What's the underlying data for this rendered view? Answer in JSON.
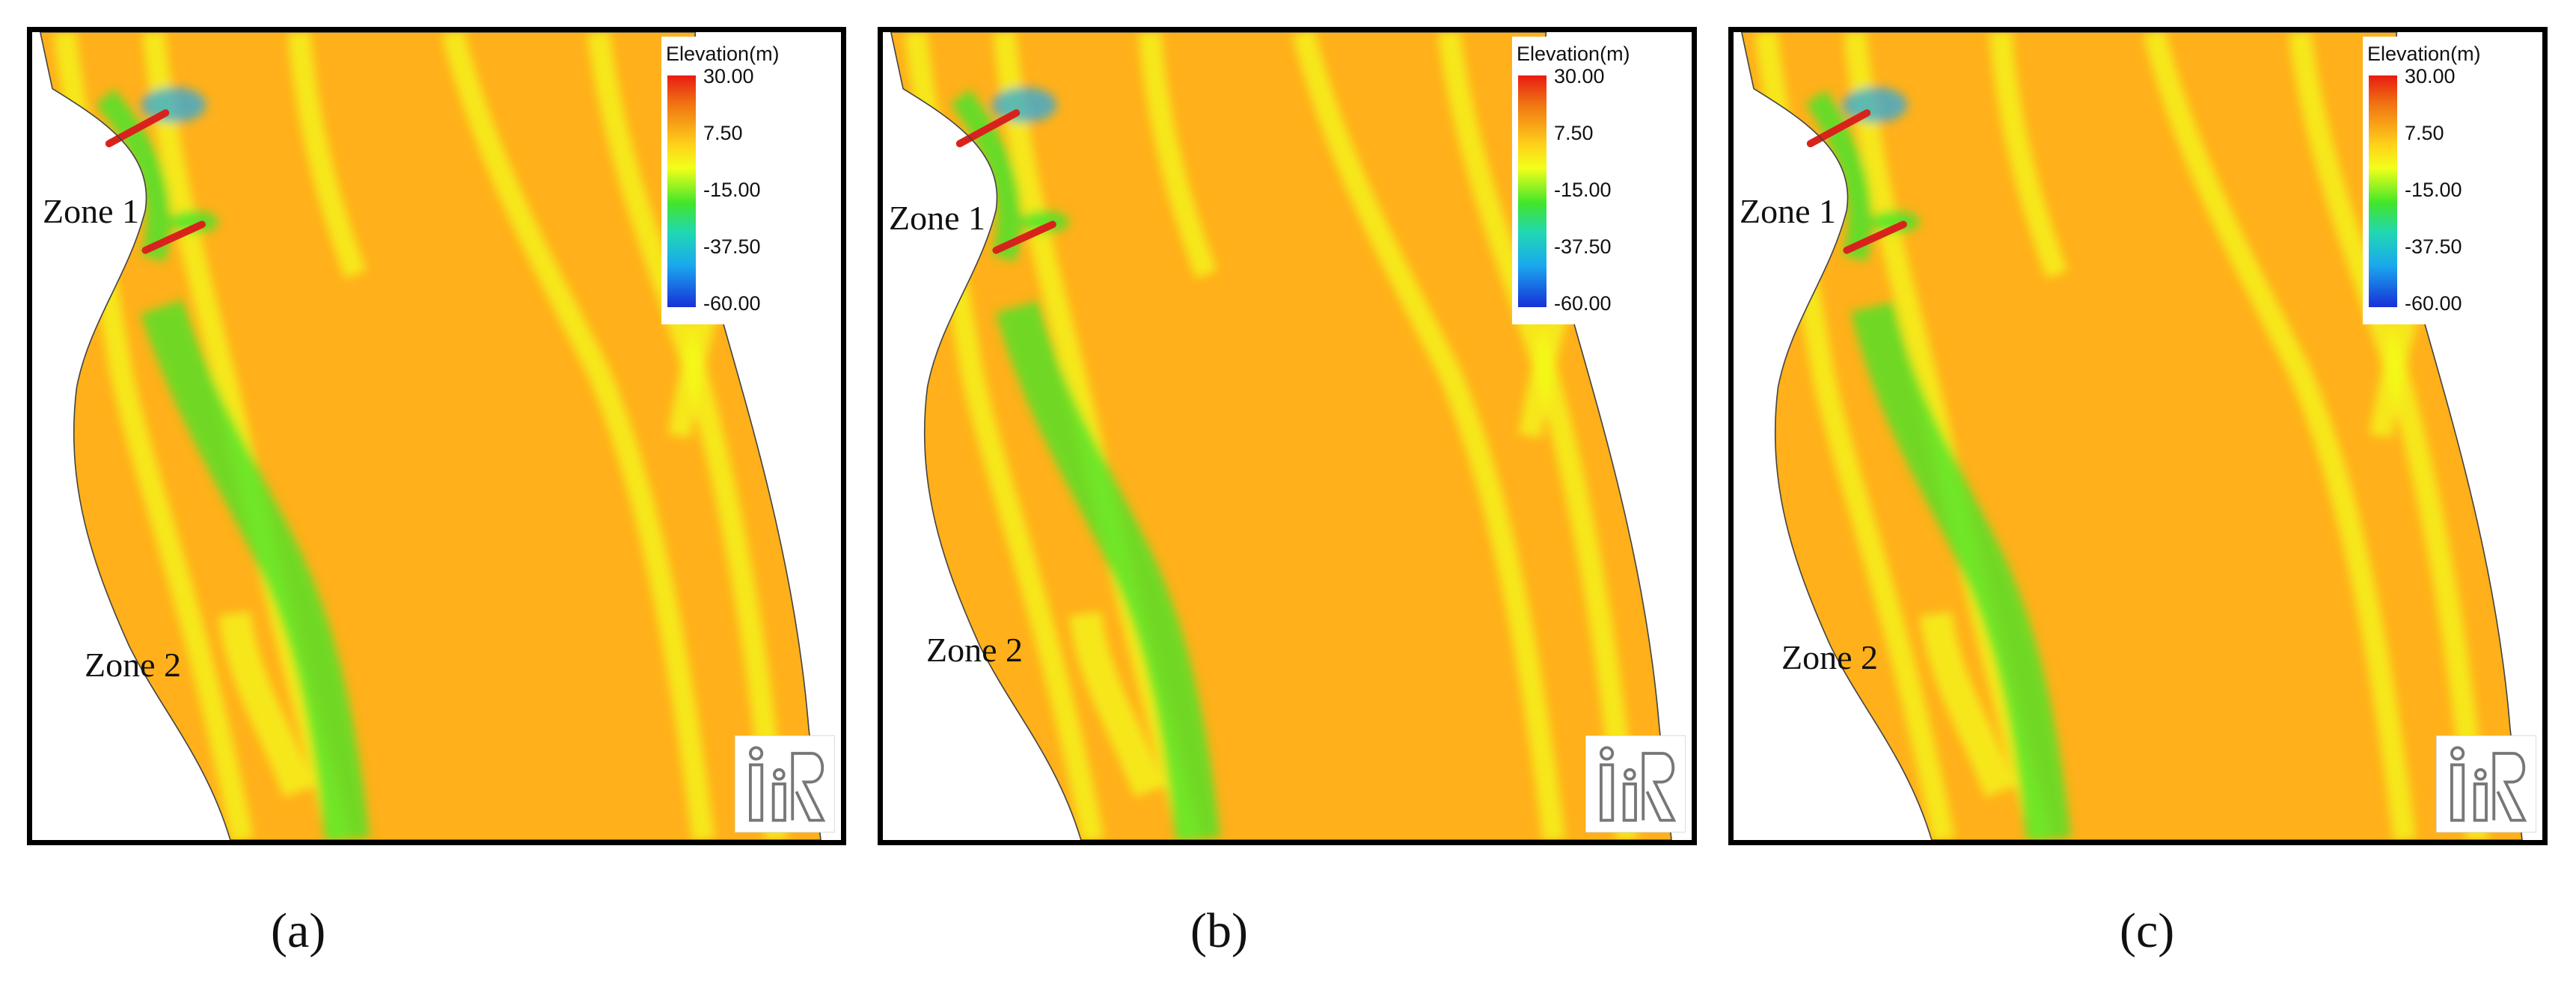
{
  "legend": {
    "title": "Elevation(m)",
    "ticks": [
      "30.00",
      "7.50",
      "-15.00",
      "-37.50",
      "-60.00"
    ]
  },
  "colors": {
    "max": "#e81b12",
    "high": "#ffb01a",
    "mid": "#f2ff1a",
    "low": "#42e62a",
    "deep": "#1aa8ee",
    "min": "#1730d7",
    "dam": "#d8231c"
  },
  "panels": [
    {
      "caption": "(a)",
      "zone1": "Zone 1",
      "zone2": "Zone 2"
    },
    {
      "caption": "(b)",
      "zone1": "Zone 1",
      "zone2": "Zone 2"
    },
    {
      "caption": "(c)",
      "zone1": "Zone 1",
      "zone2": "Zone 2"
    }
  ]
}
